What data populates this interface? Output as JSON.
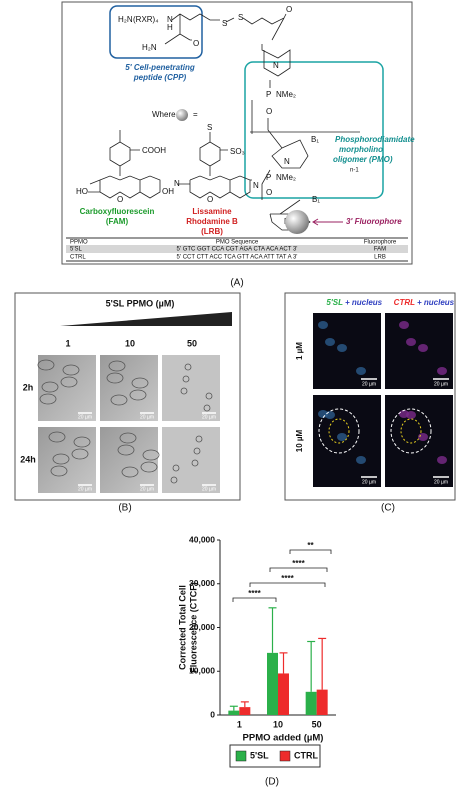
{
  "panel_a": {
    "label": "(A)",
    "cpp": {
      "amine": "H₂N",
      "repeat": "(RXR)₄",
      "nh": "N",
      "h": "H",
      "amide": "H₂N",
      "oxo": "O",
      "s1": "S",
      "s2": "S",
      "o3": "O",
      "caption": [
        "5' Cell-penetrating",
        "peptide (CPP)"
      ]
    },
    "pmo": {
      "caption": [
        "Phosphorodiamidate",
        "morpholino",
        "oligomer (PMO)"
      ],
      "n1": "N",
      "p1": "P",
      "nme1": "NMe₂",
      "o1": "O",
      "base1": "B₁",
      "n2": "N",
      "repeat": "n-1",
      "p2": "P",
      "nme2": "NMe₂",
      "o2": "O",
      "base2": "B₁",
      "n3": "N"
    },
    "where": "Where",
    "equals": "=",
    "fluorophore": "3' Fluorophore",
    "fam": {
      "cooh": "COOH",
      "ho": "HO",
      "o": "O",
      "oh": "OH",
      "name": [
        "Carboxyfluorescein",
        "(FAM)"
      ]
    },
    "lrb": {
      "so3": "SO₃",
      "so2": "S",
      "n_left": "N",
      "n_right": "N",
      "o": "O",
      "name": [
        "Lissamine",
        "Rhodamine B",
        "(LRB)"
      ]
    },
    "table": {
      "header": [
        "PPMO",
        "PMO Sequence",
        "Fluorophore"
      ],
      "rows": [
        [
          "5'SL",
          "5' GTC GGT CCA CGT AGA CTA ACA ACT 3'",
          "FAM"
        ],
        [
          "CTRL",
          "5' CCT CTT ACC TCA GTT ACA ATT TAT A 3'",
          "LRB"
        ]
      ]
    }
  },
  "panel_b": {
    "label": "(B)",
    "title": "5'SL PPMO (µM)",
    "columns": [
      "1",
      "10",
      "50"
    ],
    "rows": [
      "2h",
      "24h"
    ],
    "scale_bars": [
      [
        "20 µm",
        "20 µm",
        "20 µm"
      ],
      [
        "20 µm",
        "20 µm",
        "20 µm"
      ]
    ]
  },
  "panel_c": {
    "label": "(C)",
    "columns": [
      [
        "5'SL",
        "+ nucleus"
      ],
      [
        "CTRL",
        "+ nucleus"
      ]
    ],
    "rows": [
      "1 µM",
      "10 µM"
    ],
    "scale_bars": [
      [
        "20 µm",
        "20 µm"
      ],
      [
        "20 µm",
        "20 µm"
      ]
    ]
  },
  "chart_data": {
    "type": "bar",
    "label": "(D)",
    "y_label": [
      "Corrected Total Cell",
      "Fluorescence (CTCF)"
    ],
    "x_label": "PPMO added (µM)",
    "categories": [
      "1",
      "10",
      "50"
    ],
    "series": [
      {
        "name": "5'SL",
        "color": "#2bb04a",
        "values": [
          1000,
          14200,
          5300
        ],
        "errors": [
          1000,
          10300,
          11500
        ]
      },
      {
        "name": "CTRL",
        "color": "#ee2b2b",
        "values": [
          1800,
          9500,
          5800
        ],
        "errors": [
          1200,
          4700,
          11700
        ]
      }
    ],
    "ylim": [
      0,
      40000
    ],
    "yticks": [
      0,
      {
        "value": 10000,
        "label": "10,000"
      },
      {
        "value": 20000,
        "label": "20,000"
      },
      {
        "value": 30000,
        "label": "30,000"
      },
      {
        "value": 40000,
        "label": "40,000"
      }
    ],
    "annotations": [
      "****",
      "****",
      "****",
      "**"
    ],
    "legend": "bottom"
  }
}
